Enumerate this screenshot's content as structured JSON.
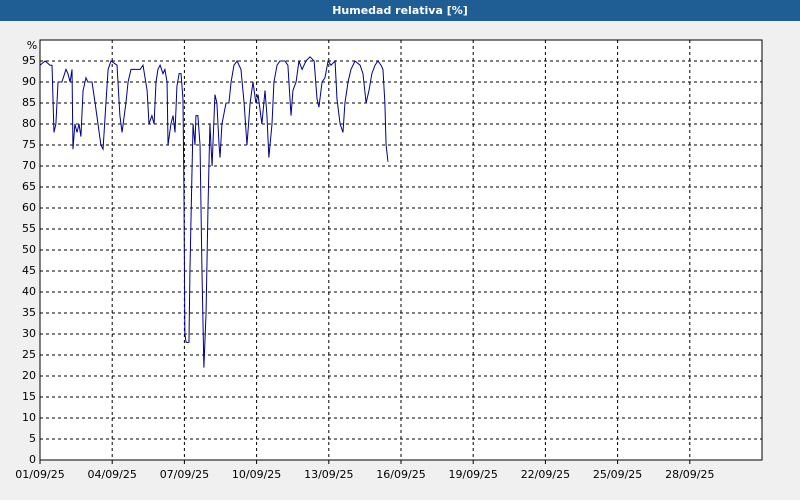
{
  "chart_data": {
    "type": "line",
    "title": "Humedad relativa [%]",
    "y_label": "%",
    "xlim": [
      0,
      30
    ],
    "ylim": [
      0,
      100
    ],
    "xticks": [
      {
        "value": 0,
        "label": "01/09/25"
      },
      {
        "value": 3,
        "label": "04/09/25"
      },
      {
        "value": 6,
        "label": "07/09/25"
      },
      {
        "value": 9,
        "label": "10/09/25"
      },
      {
        "value": 12,
        "label": "13/09/25"
      },
      {
        "value": 15,
        "label": "16/09/25"
      },
      {
        "value": 18,
        "label": "19/09/25"
      },
      {
        "value": 21,
        "label": "22/09/25"
      },
      {
        "value": 24,
        "label": "25/09/25"
      },
      {
        "value": 27,
        "label": "28/09/25"
      }
    ],
    "yticks": [
      0,
      5,
      10,
      15,
      20,
      25,
      30,
      35,
      40,
      45,
      50,
      55,
      60,
      65,
      70,
      75,
      80,
      85,
      90,
      95
    ],
    "grid": true,
    "series": [
      {
        "color": "#00008b",
        "x": [
          0,
          0.21,
          0.42,
          0.5,
          0.58,
          0.66,
          0.75,
          0.91,
          1.08,
          1.16,
          1.25,
          1.33,
          1.37,
          1.45,
          1.54,
          1.62,
          1.7,
          1.79,
          1.91,
          1.99,
          2.16,
          2.29,
          2.41,
          2.53,
          2.62,
          2.74,
          2.83,
          2.95,
          3.2,
          3.32,
          3.41,
          3.57,
          3.66,
          3.78,
          4.16,
          4.28,
          4.45,
          4.53,
          4.65,
          4.74,
          4.82,
          4.9,
          4.99,
          5.11,
          5.19,
          5.28,
          5.32,
          5.44,
          5.53,
          5.61,
          5.69,
          5.78,
          5.86,
          5.94,
          5.98,
          6.02,
          6.07,
          6.19,
          6.23,
          6.32,
          6.36,
          6.44,
          6.48,
          6.56,
          6.65,
          6.73,
          6.81,
          6.9,
          6.98,
          7.06,
          7.15,
          7.27,
          7.35,
          7.44,
          7.48,
          7.56,
          7.73,
          7.85,
          7.94,
          8.06,
          8.19,
          8.35,
          8.48,
          8.6,
          8.73,
          8.85,
          8.97,
          9.06,
          9.22,
          9.35,
          9.43,
          9.51,
          9.64,
          9.72,
          9.85,
          9.97,
          10.18,
          10.3,
          10.43,
          10.51,
          10.64,
          10.76,
          10.89,
          11.05,
          11.22,
          11.39,
          11.51,
          11.59,
          11.72,
          11.84,
          11.97,
          12.09,
          12.26,
          12.34,
          12.47,
          12.59,
          12.67,
          12.8,
          12.92,
          13.09,
          13.3,
          13.42,
          13.55,
          13.67,
          13.79,
          13.92,
          14.04,
          14.17,
          14.25,
          14.33,
          14.38,
          14.46
        ],
        "values": [
          94,
          95,
          94,
          94,
          78,
          80,
          90,
          90,
          93,
          92,
          90,
          93,
          74,
          80,
          78,
          80,
          77,
          88,
          91,
          90,
          90,
          85,
          80,
          75,
          74,
          85,
          93,
          95,
          94,
          82,
          78,
          85,
          90,
          93,
          93,
          94,
          88,
          80,
          82,
          80,
          90,
          93,
          94,
          92,
          93,
          90,
          75,
          80,
          82,
          78,
          89,
          92,
          92,
          86,
          65,
          30,
          28,
          28,
          45,
          70,
          80,
          75,
          82,
          82,
          75,
          45,
          22,
          35,
          60,
          80,
          70,
          87,
          85,
          75,
          72,
          80,
          85,
          85,
          90,
          94,
          95,
          93,
          85,
          75,
          85,
          90,
          85,
          87,
          80,
          88,
          82,
          72,
          80,
          90,
          94,
          95,
          95,
          94,
          82,
          88,
          90,
          95,
          93,
          95,
          96,
          95,
          86,
          84,
          90,
          91,
          95,
          94,
          95,
          86,
          80,
          78,
          85,
          90,
          93,
          95,
          94,
          92,
          85,
          88,
          92,
          94,
          95,
          94,
          93,
          85,
          75,
          71
        ]
      }
    ]
  }
}
